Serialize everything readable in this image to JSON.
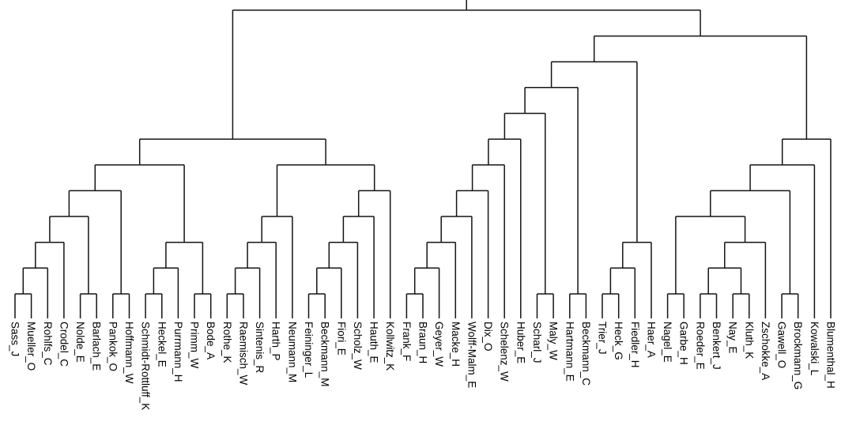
{
  "chart_data": {
    "type": "dendrogram",
    "title": "",
    "xlabel": "",
    "ylabel": "",
    "orientation": "root-top",
    "grid": false,
    "legend": "none",
    "axes_shown": false,
    "line_color": "#141414",
    "label_color": "#000000",
    "background": "#ffffff",
    "height_units": "merge level (no axis drawn; merges occur at evenly spaced heights 1-12, root stem exits top edge)",
    "n_leaves": 51,
    "leaf_labels": [
      "Sass_J",
      "Mueller_O",
      "Rohlfs_C",
      "Crodel_C",
      "Nolde_E",
      "Barlach_E",
      "Pankok_O",
      "Hoffmann_W",
      "Schmidt-Rottluff_K",
      "Heckel_E",
      "Purrmann_H",
      "Primm_W",
      "Bode_A",
      "Rothe_K",
      "Raemisch_W",
      "Sintenis_R",
      "Harth_P",
      "Neumann_M",
      "Feininger_L",
      "Beckmann_M",
      "Fiori_E",
      "Scholz_W",
      "Hauth_E",
      "Kollwitz_K",
      "Frank_F",
      "Braun_H",
      "Geyer_W",
      "Macke_H",
      "Wolff-Malm_E",
      "Dix_O",
      "Schelenz_W",
      "Huber_E",
      "Scharl_J",
      "Maly_W",
      "Hartmann_E",
      "Beckmann_C",
      "Trier_J",
      "Heck_G",
      "Fiedler_H",
      "Haer_A",
      "Nagel_E",
      "Garbe_H",
      "Roeder_E",
      "Benkert_J",
      "Nay_E",
      "Kluth_K",
      "Zschokke_A",
      "Gawell_O",
      "Brockmann_G",
      "Kowalski_L",
      "Blumenthal_H"
    ],
    "tree": {
      "h": 12,
      "c": [
        {
          "h": 7,
          "c": [
            {
              "h": 6,
              "c": [
                {
                  "h": 5,
                  "c": [
                    {
                      "h": 4,
                      "c": [
                        {
                          "h": 3,
                          "c": [
                            {
                              "h": 2,
                              "c": [
                                {
                                  "h": 1,
                                  "c": [
                                    "Sass_J",
                                    "Mueller_O"
                                  ]
                                },
                                "Rohlfs_C"
                              ]
                            },
                            "Crodel_C"
                          ]
                        },
                        {
                          "h": 1,
                          "c": [
                            "Nolde_E",
                            "Barlach_E"
                          ]
                        }
                      ]
                    },
                    {
                      "h": 1,
                      "c": [
                        "Pankok_O",
                        "Hoffmann_W"
                      ]
                    }
                  ]
                },
                {
                  "h": 3,
                  "c": [
                    {
                      "h": 2,
                      "c": [
                        {
                          "h": 1,
                          "c": [
                            "Schmidt-Rottluff_K",
                            "Heckel_E"
                          ]
                        },
                        "Purrmann_H"
                      ]
                    },
                    {
                      "h": 1,
                      "c": [
                        "Primm_W",
                        "Bode_A"
                      ]
                    }
                  ]
                }
              ]
            },
            {
              "h": 6,
              "c": [
                {
                  "h": 4,
                  "c": [
                    {
                      "h": 3,
                      "c": [
                        {
                          "h": 2,
                          "c": [
                            {
                              "h": 1,
                              "c": [
                                "Rothe_K",
                                "Raemisch_W"
                              ]
                            },
                            "Sintenis_R"
                          ]
                        },
                        "Harth_P"
                      ]
                    },
                    "Neumann_M"
                  ]
                },
                {
                  "h": 5,
                  "c": [
                    {
                      "h": 4,
                      "c": [
                        {
                          "h": 3,
                          "c": [
                            {
                              "h": 2,
                              "c": [
                                {
                                  "h": 1,
                                  "c": [
                                    "Feininger_L",
                                    "Beckmann_M"
                                  ]
                                },
                                "Fiori_E"
                              ]
                            },
                            "Scholz_W"
                          ]
                        },
                        "Hauth_E"
                      ]
                    },
                    "Kollwitz_K"
                  ]
                }
              ]
            }
          ]
        },
        {
          "h": 11,
          "c": [
            {
              "h": 10,
              "c": [
                {
                  "h": 9,
                  "c": [
                    {
                      "h": 8,
                      "c": [
                        {
                          "h": 7,
                          "c": [
                            {
                              "h": 6,
                              "c": [
                                {
                                  "h": 5,
                                  "c": [
                                    {
                                      "h": 4,
                                      "c": [
                                        {
                                          "h": 3,
                                          "c": [
                                            {
                                              "h": 2,
                                              "c": [
                                                {
                                                  "h": 1,
                                                  "c": [
                                                    "Frank_F",
                                                    "Braun_H"
                                                  ]
                                                },
                                                "Geyer_W"
                                              ]
                                            },
                                            "Macke_H"
                                          ]
                                        },
                                        "Wolff-Malm_E"
                                      ]
                                    },
                                    "Dix_O"
                                  ]
                                },
                                "Schelenz_W"
                              ]
                            },
                            "Huber_E"
                          ]
                        },
                        {
                          "h": 1,
                          "c": [
                            "Scharl_J",
                            "Maly_W"
                          ]
                        }
                      ]
                    },
                    {
                      "h": 1,
                      "c": [
                        "Hartmann_E",
                        "Beckmann_C"
                      ]
                    }
                  ]
                },
                {
                  "h": 3,
                  "c": [
                    {
                      "h": 2,
                      "c": [
                        {
                          "h": 1,
                          "c": [
                            "Trier_J",
                            "Heck_G"
                          ]
                        },
                        "Fiedler_H"
                      ]
                    },
                    "Haer_A"
                  ]
                }
              ]
            },
            {
              "h": 7,
              "c": [
                {
                  "h": 6,
                  "c": [
                    {
                      "h": 5,
                      "c": [
                        {
                          "h": 4,
                          "c": [
                            {
                              "h": 1,
                              "c": [
                                "Nagel_E",
                                "Garbe_H"
                              ]
                            },
                            {
                              "h": 3,
                              "c": [
                                {
                                  "h": 2,
                                  "c": [
                                    {
                                      "h": 1,
                                      "c": [
                                        "Roeder_E",
                                        "Benkert_J"
                                      ]
                                    },
                                    {
                                      "h": 1,
                                      "c": [
                                        "Nay_E",
                                        "Kluth_K"
                                      ]
                                    }
                                  ]
                                },
                                "Zschokke_A"
                              ]
                            }
                          ]
                        },
                        {
                          "h": 1,
                          "c": [
                            "Gawell_O",
                            "Brockmann_G"
                          ]
                        }
                      ]
                    },
                    "Kowalski_L"
                  ]
                },
                "Blumenthal_H"
              ]
            }
          ]
        }
      ]
    }
  }
}
